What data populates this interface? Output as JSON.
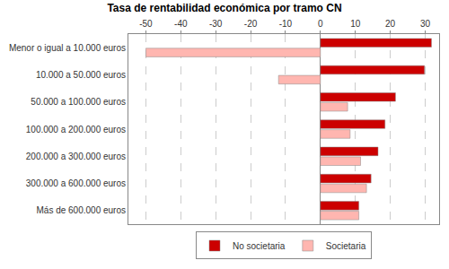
{
  "chart_data": {
    "type": "bar",
    "title": "Tasa de rentabilidad económica por tramo CN",
    "orientation": "horizontal",
    "categories": [
      "Menor o igual a 10.000 euros",
      "10.000 a 50.000 euros",
      "50.000 a 100.000 euros",
      "100.000 a 200.000 euros",
      "200.000 a 300.000 euros",
      "300.000 a 600.000 euros",
      "Más de 600.000 euros"
    ],
    "series": [
      {
        "name": "No societaria",
        "color": "#cc0000",
        "values": [
          31.8,
          29.8,
          21.5,
          18.5,
          16.5,
          14.5,
          11.0
        ]
      },
      {
        "name": "Societaria",
        "color": "#ffb6b0",
        "values": [
          -50.0,
          -12.0,
          7.8,
          8.5,
          11.5,
          13.2,
          11.0
        ]
      }
    ],
    "xlim": [
      -55,
      34
    ],
    "xticks": [
      -50,
      -40,
      -30,
      -20,
      -10,
      0,
      10,
      20,
      30
    ],
    "grid": true,
    "legend": "bottom"
  }
}
